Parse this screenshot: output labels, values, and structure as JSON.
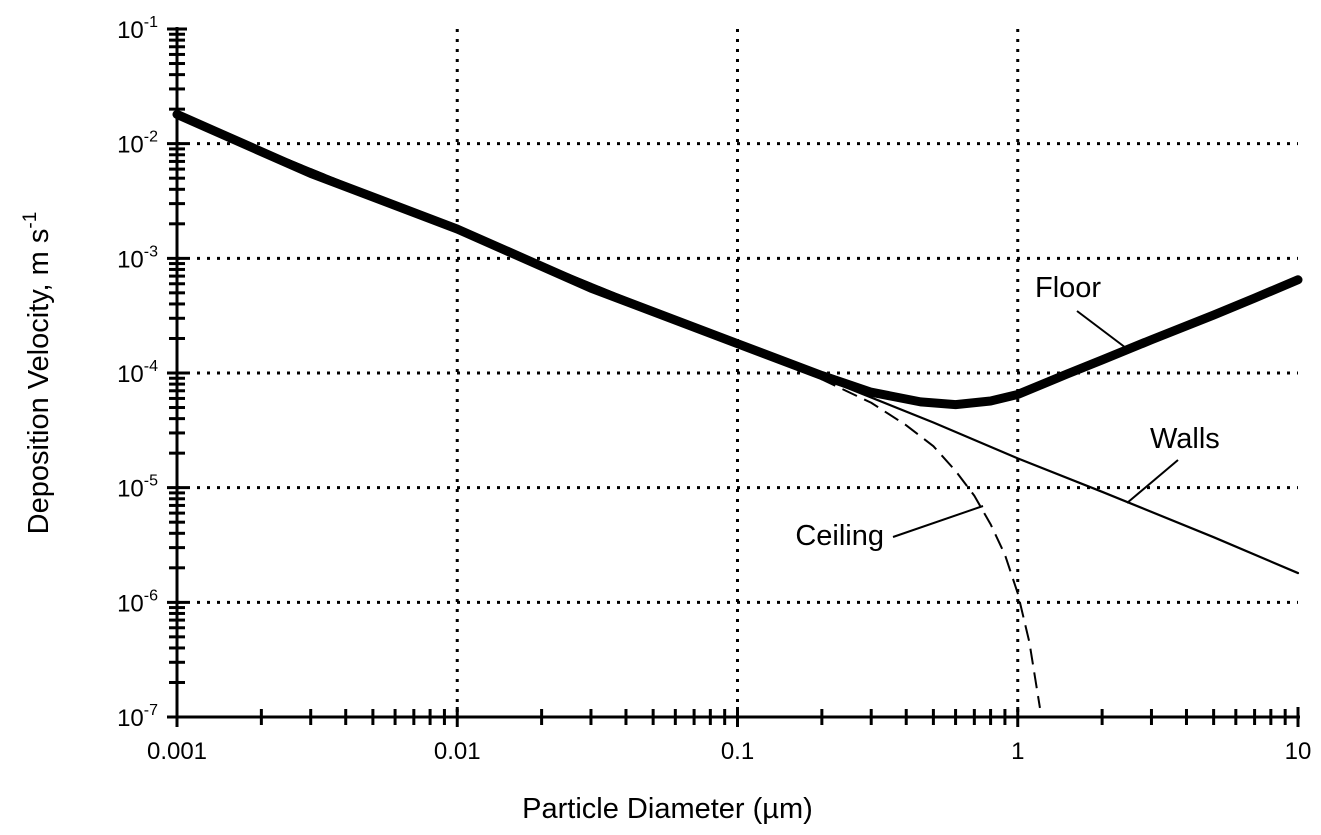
{
  "chart_data": {
    "type": "line",
    "xlabel": "Particle Diameter (µm)",
    "ylabel": "Deposition Velocity, m s",
    "ylabel_superscript": "-1",
    "x_scale": "log",
    "y_scale": "log",
    "xlim": [
      0.001,
      10
    ],
    "ylim": [
      1e-07,
      0.1
    ],
    "grid": true,
    "grid_style": "dotted",
    "x_tick_labels": [
      "0.001",
      "0.01",
      "0.1",
      "1",
      "10"
    ],
    "y_tick_labels": [
      {
        "base": "10",
        "exp": "-7"
      },
      {
        "base": "10",
        "exp": "-6"
      },
      {
        "base": "10",
        "exp": "-5"
      },
      {
        "base": "10",
        "exp": "-4"
      },
      {
        "base": "10",
        "exp": "-3"
      },
      {
        "base": "10",
        "exp": "-2"
      },
      {
        "base": "10",
        "exp": "-1"
      }
    ],
    "series": [
      {
        "name": "Floor",
        "style": "thick-solid",
        "color": "#000000",
        "points": [
          [
            0.001,
            0.018
          ],
          [
            0.003,
            0.0055
          ],
          [
            0.01,
            0.0018
          ],
          [
            0.03,
            0.00055
          ],
          [
            0.1,
            0.00018
          ],
          [
            0.2,
            9.5e-05
          ],
          [
            0.3,
            6.8e-05
          ],
          [
            0.45,
            5.6e-05
          ],
          [
            0.6,
            5.3e-05
          ],
          [
            0.8,
            5.7e-05
          ],
          [
            1.0,
            6.5e-05
          ],
          [
            1.5,
            9.8e-05
          ],
          [
            2.0,
            0.00013
          ],
          [
            3.0,
            0.000195
          ],
          [
            5.0,
            0.00032
          ],
          [
            7.0,
            0.00045
          ],
          [
            10.0,
            0.00065
          ]
        ]
      },
      {
        "name": "Walls",
        "style": "thin-solid",
        "color": "#000000",
        "points": [
          [
            0.001,
            0.018
          ],
          [
            0.01,
            0.0018
          ],
          [
            0.1,
            0.00018
          ],
          [
            0.2,
            9.1e-05
          ],
          [
            0.5,
            3.7e-05
          ],
          [
            1.0,
            1.8e-05
          ],
          [
            2.0,
            9.2e-06
          ],
          [
            5.0,
            3.7e-06
          ],
          [
            10.0,
            1.8e-06
          ]
        ]
      },
      {
        "name": "Ceiling",
        "style": "dashed",
        "color": "#000000",
        "points": [
          [
            0.001,
            0.018
          ],
          [
            0.01,
            0.0018
          ],
          [
            0.1,
            0.00018
          ],
          [
            0.2,
            8.8e-05
          ],
          [
            0.3,
            5.5e-05
          ],
          [
            0.4,
            3.5e-05
          ],
          [
            0.5,
            2.3e-05
          ],
          [
            0.6,
            1.4e-05
          ],
          [
            0.7,
            8.5e-06
          ],
          [
            0.8,
            4.8e-06
          ],
          [
            0.9,
            2.6e-06
          ],
          [
            1.0,
            1.2e-06
          ],
          [
            1.1,
            4.5e-07
          ],
          [
            1.2,
            1.2e-07
          ]
        ]
      }
    ]
  }
}
